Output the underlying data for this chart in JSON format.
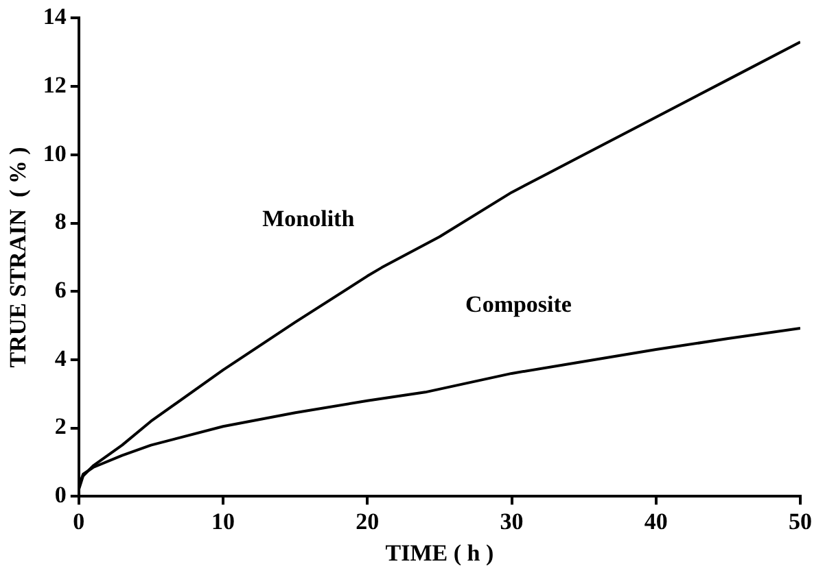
{
  "chart_data": {
    "type": "line",
    "xlabel": "TIME ( h )",
    "ylabel": "TRUE STRAIN  ( % )",
    "xlim": [
      0,
      50
    ],
    "ylim": [
      0,
      14
    ],
    "xticks": [
      0,
      10,
      20,
      30,
      40,
      50
    ],
    "yticks": [
      0,
      2,
      4,
      6,
      8,
      10,
      12,
      14
    ],
    "grid": false,
    "legend": false,
    "marker": "none",
    "line_style": "solid",
    "series": [
      {
        "name": "Monolith",
        "color": "#000000",
        "x": [
          0,
          0.3,
          1,
          3,
          5,
          10,
          15,
          20,
          21,
          25,
          30,
          35,
          40,
          45,
          50
        ],
        "values": [
          0.2,
          0.6,
          0.9,
          1.5,
          2.2,
          3.7,
          5.1,
          6.45,
          6.7,
          7.6,
          8.9,
          10.0,
          11.1,
          12.2,
          13.3
        ]
      },
      {
        "name": "Composite",
        "color": "#000000",
        "x": [
          0,
          0.3,
          1,
          3,
          5,
          10,
          15,
          20,
          24,
          30,
          35,
          40,
          45,
          50
        ],
        "values": [
          0.3,
          0.65,
          0.85,
          1.2,
          1.5,
          2.05,
          2.45,
          2.8,
          3.05,
          3.6,
          3.95,
          4.3,
          4.62,
          4.92
        ]
      }
    ]
  }
}
